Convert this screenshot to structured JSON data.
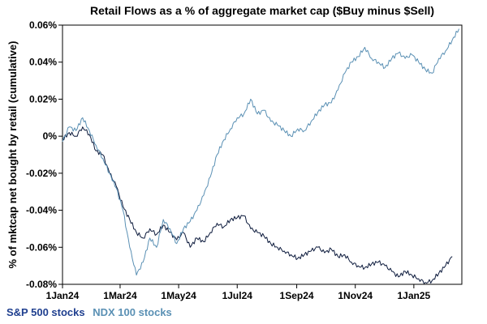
{
  "chart_data": {
    "type": "line",
    "title": "Retail Flows as a % of aggregate market cap ($Buy minus $Sell)",
    "xlabel": "",
    "ylabel": "% of mktcap net bought by retail (cumulative)",
    "x_range": [
      "2024-01-01",
      "2025-02-20"
    ],
    "ylim": [
      -0.08,
      0.06
    ],
    "y_ticks": [
      -0.08,
      -0.06,
      -0.04,
      -0.02,
      0,
      0.02,
      0.04,
      0.06
    ],
    "y_tick_labels": [
      "-0.08%",
      "-0.06%",
      "-0.04%",
      "-0.02%",
      "0%",
      "0.02%",
      "0.04%",
      "0.06%"
    ],
    "x_ticks": [
      "2024-01-01",
      "2024-03-01",
      "2024-05-01",
      "2024-07-01",
      "2024-09-01",
      "2024-11-01",
      "2025-01-01"
    ],
    "x_tick_labels": [
      "1Jan24",
      "1Mar24",
      "1May24",
      "1Jul24",
      "1Sep24",
      "1Nov24",
      "1Jan25"
    ],
    "grid": false,
    "series": [
      {
        "name": "S&P 500 stocks",
        "color": "#0d1b3d",
        "points": [
          [
            "2024-01-01",
            -0.002
          ],
          [
            "2024-01-08",
            0.002
          ],
          [
            "2024-01-15",
            0.0
          ],
          [
            "2024-01-22",
            0.005
          ],
          [
            "2024-01-29",
            0.001
          ],
          [
            "2024-02-05",
            -0.008
          ],
          [
            "2024-02-12",
            -0.01
          ],
          [
            "2024-02-19",
            -0.02
          ],
          [
            "2024-02-26",
            -0.027
          ],
          [
            "2024-03-04",
            -0.038
          ],
          [
            "2024-03-11",
            -0.045
          ],
          [
            "2024-03-18",
            -0.052
          ],
          [
            "2024-03-25",
            -0.055
          ],
          [
            "2024-04-01",
            -0.05
          ],
          [
            "2024-04-08",
            -0.053
          ],
          [
            "2024-04-15",
            -0.048
          ],
          [
            "2024-04-22",
            -0.052
          ],
          [
            "2024-04-29",
            -0.056
          ],
          [
            "2024-05-06",
            -0.052
          ],
          [
            "2024-05-13",
            -0.06
          ],
          [
            "2024-05-20",
            -0.055
          ],
          [
            "2024-05-27",
            -0.057
          ],
          [
            "2024-06-03",
            -0.052
          ],
          [
            "2024-06-10",
            -0.047
          ],
          [
            "2024-06-17",
            -0.049
          ],
          [
            "2024-06-24",
            -0.045
          ],
          [
            "2024-07-01",
            -0.044
          ],
          [
            "2024-07-08",
            -0.043
          ],
          [
            "2024-07-15",
            -0.05
          ],
          [
            "2024-07-22",
            -0.052
          ],
          [
            "2024-07-29",
            -0.054
          ],
          [
            "2024-08-05",
            -0.058
          ],
          [
            "2024-08-12",
            -0.06
          ],
          [
            "2024-08-19",
            -0.062
          ],
          [
            "2024-08-26",
            -0.064
          ],
          [
            "2024-09-02",
            -0.066
          ],
          [
            "2024-09-09",
            -0.064
          ],
          [
            "2024-09-16",
            -0.062
          ],
          [
            "2024-09-23",
            -0.06
          ],
          [
            "2024-09-30",
            -0.063
          ],
          [
            "2024-10-07",
            -0.061
          ],
          [
            "2024-10-14",
            -0.065
          ],
          [
            "2024-10-21",
            -0.064
          ],
          [
            "2024-10-28",
            -0.068
          ],
          [
            "2024-11-04",
            -0.07
          ],
          [
            "2024-11-11",
            -0.071
          ],
          [
            "2024-11-18",
            -0.069
          ],
          [
            "2024-11-25",
            -0.068
          ],
          [
            "2024-12-02",
            -0.07
          ],
          [
            "2024-12-09",
            -0.073
          ],
          [
            "2024-12-16",
            -0.076
          ],
          [
            "2024-12-23",
            -0.073
          ],
          [
            "2024-12-30",
            -0.075
          ],
          [
            "2025-01-06",
            -0.077
          ],
          [
            "2025-01-13",
            -0.079
          ],
          [
            "2025-01-20",
            -0.078
          ],
          [
            "2025-01-27",
            -0.074
          ],
          [
            "2025-02-03",
            -0.07
          ],
          [
            "2025-02-10",
            -0.065
          ]
        ]
      },
      {
        "name": "NDX 100 stocks",
        "color": "#5a90b4",
        "points": [
          [
            "2024-01-01",
            -0.003
          ],
          [
            "2024-01-08",
            0.005
          ],
          [
            "2024-01-15",
            0.003
          ],
          [
            "2024-01-22",
            0.01
          ],
          [
            "2024-01-29",
            0.003
          ],
          [
            "2024-02-05",
            -0.005
          ],
          [
            "2024-02-12",
            -0.012
          ],
          [
            "2024-02-19",
            -0.02
          ],
          [
            "2024-02-26",
            -0.028
          ],
          [
            "2024-03-04",
            -0.04
          ],
          [
            "2024-03-11",
            -0.06
          ],
          [
            "2024-03-18",
            -0.075
          ],
          [
            "2024-03-25",
            -0.068
          ],
          [
            "2024-04-01",
            -0.055
          ],
          [
            "2024-04-08",
            -0.06
          ],
          [
            "2024-04-15",
            -0.045
          ],
          [
            "2024-04-22",
            -0.05
          ],
          [
            "2024-04-29",
            -0.058
          ],
          [
            "2024-05-06",
            -0.05
          ],
          [
            "2024-05-13",
            -0.046
          ],
          [
            "2024-05-20",
            -0.04
          ],
          [
            "2024-05-27",
            -0.032
          ],
          [
            "2024-06-03",
            -0.022
          ],
          [
            "2024-06-10",
            -0.01
          ],
          [
            "2024-06-17",
            -0.002
          ],
          [
            "2024-06-24",
            0.004
          ],
          [
            "2024-07-01",
            0.01
          ],
          [
            "2024-07-08",
            0.012
          ],
          [
            "2024-07-15",
            0.02
          ],
          [
            "2024-07-22",
            0.012
          ],
          [
            "2024-07-29",
            0.014
          ],
          [
            "2024-08-05",
            0.008
          ],
          [
            "2024-08-12",
            0.006
          ],
          [
            "2024-08-19",
            0.003
          ],
          [
            "2024-08-26",
            0.0
          ],
          [
            "2024-09-02",
            0.004
          ],
          [
            "2024-09-09",
            0.003
          ],
          [
            "2024-09-16",
            0.008
          ],
          [
            "2024-09-23",
            0.013
          ],
          [
            "2024-09-30",
            0.017
          ],
          [
            "2024-10-07",
            0.018
          ],
          [
            "2024-10-14",
            0.025
          ],
          [
            "2024-10-21",
            0.034
          ],
          [
            "2024-10-28",
            0.04
          ],
          [
            "2024-11-04",
            0.043
          ],
          [
            "2024-11-11",
            0.048
          ],
          [
            "2024-11-18",
            0.042
          ],
          [
            "2024-11-25",
            0.04
          ],
          [
            "2024-12-02",
            0.037
          ],
          [
            "2024-12-09",
            0.042
          ],
          [
            "2024-12-16",
            0.045
          ],
          [
            "2024-12-23",
            0.042
          ],
          [
            "2024-12-30",
            0.044
          ],
          [
            "2025-01-06",
            0.04
          ],
          [
            "2025-01-13",
            0.036
          ],
          [
            "2025-01-20",
            0.034
          ],
          [
            "2025-01-27",
            0.042
          ],
          [
            "2025-02-03",
            0.046
          ],
          [
            "2025-02-10",
            0.052
          ],
          [
            "2025-02-17",
            0.058
          ]
        ]
      }
    ],
    "legend": {
      "placement": "bottom-left",
      "items": [
        "S&P 500 stocks",
        "NDX 100 stocks"
      ]
    }
  }
}
